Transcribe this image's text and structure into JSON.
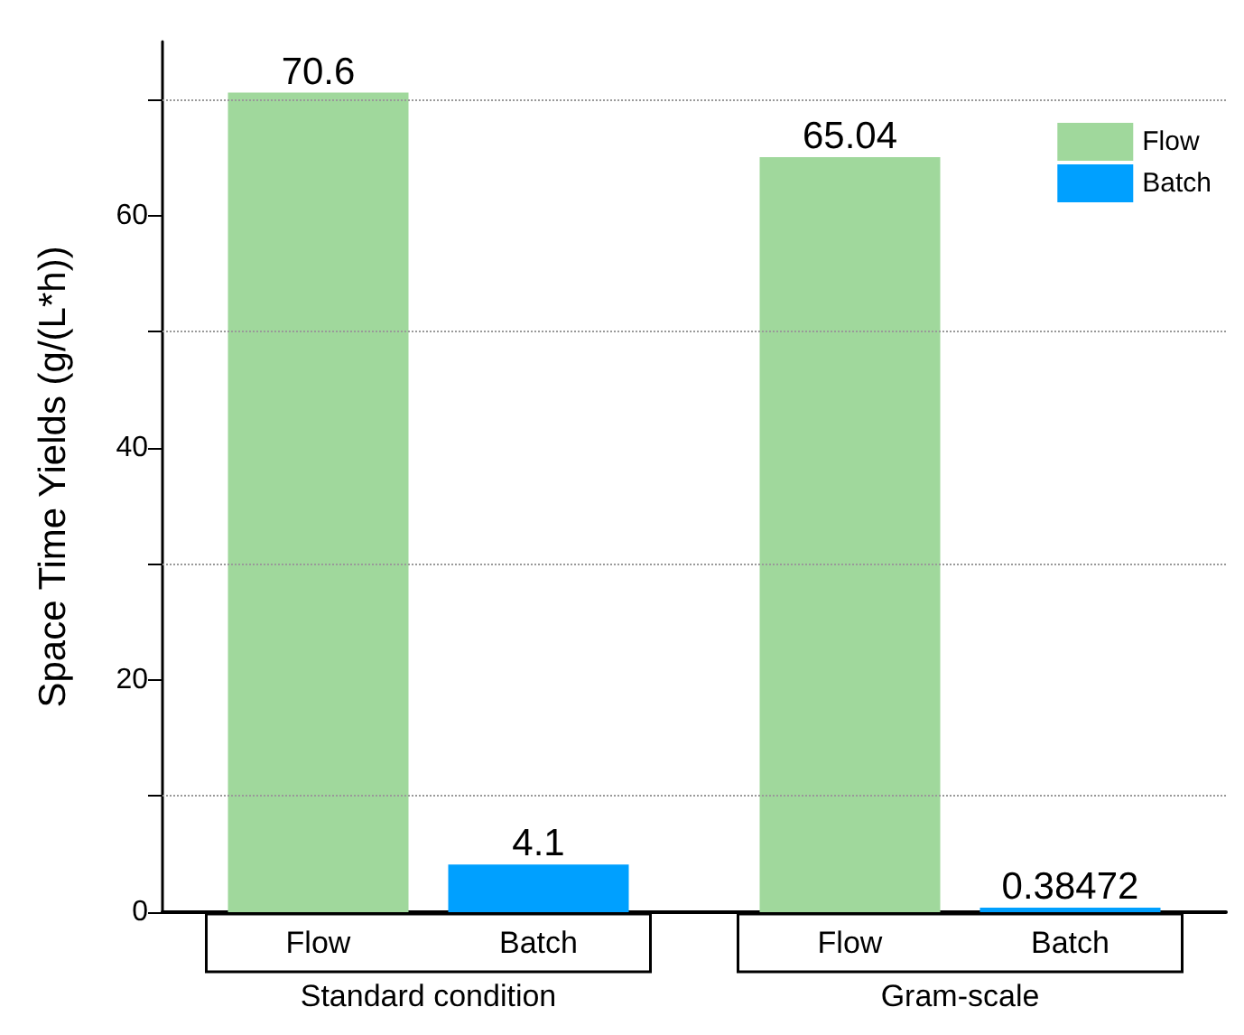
{
  "chart_data": {
    "type": "bar",
    "ylabel": "Space Time Yields (g/(L*h))",
    "categories": [
      "Standard condition",
      "Gram-scale"
    ],
    "series": [
      {
        "name": "Flow",
        "color": "#a0d89c",
        "values": [
          70.6,
          65.04
        ]
      },
      {
        "name": "Batch",
        "color": "#00a0ff",
        "values": [
          4.1,
          0.38472
        ]
      }
    ],
    "ylim": [
      0,
      75
    ],
    "yticks": [
      0,
      {
        "value": 10,
        "label": null
      },
      20,
      {
        "value": 30,
        "label": null
      },
      40,
      {
        "value": 50,
        "label": null
      },
      60,
      {
        "value": 70,
        "label": null
      }
    ],
    "grid": true,
    "legend": "top right",
    "data_labels": true
  }
}
